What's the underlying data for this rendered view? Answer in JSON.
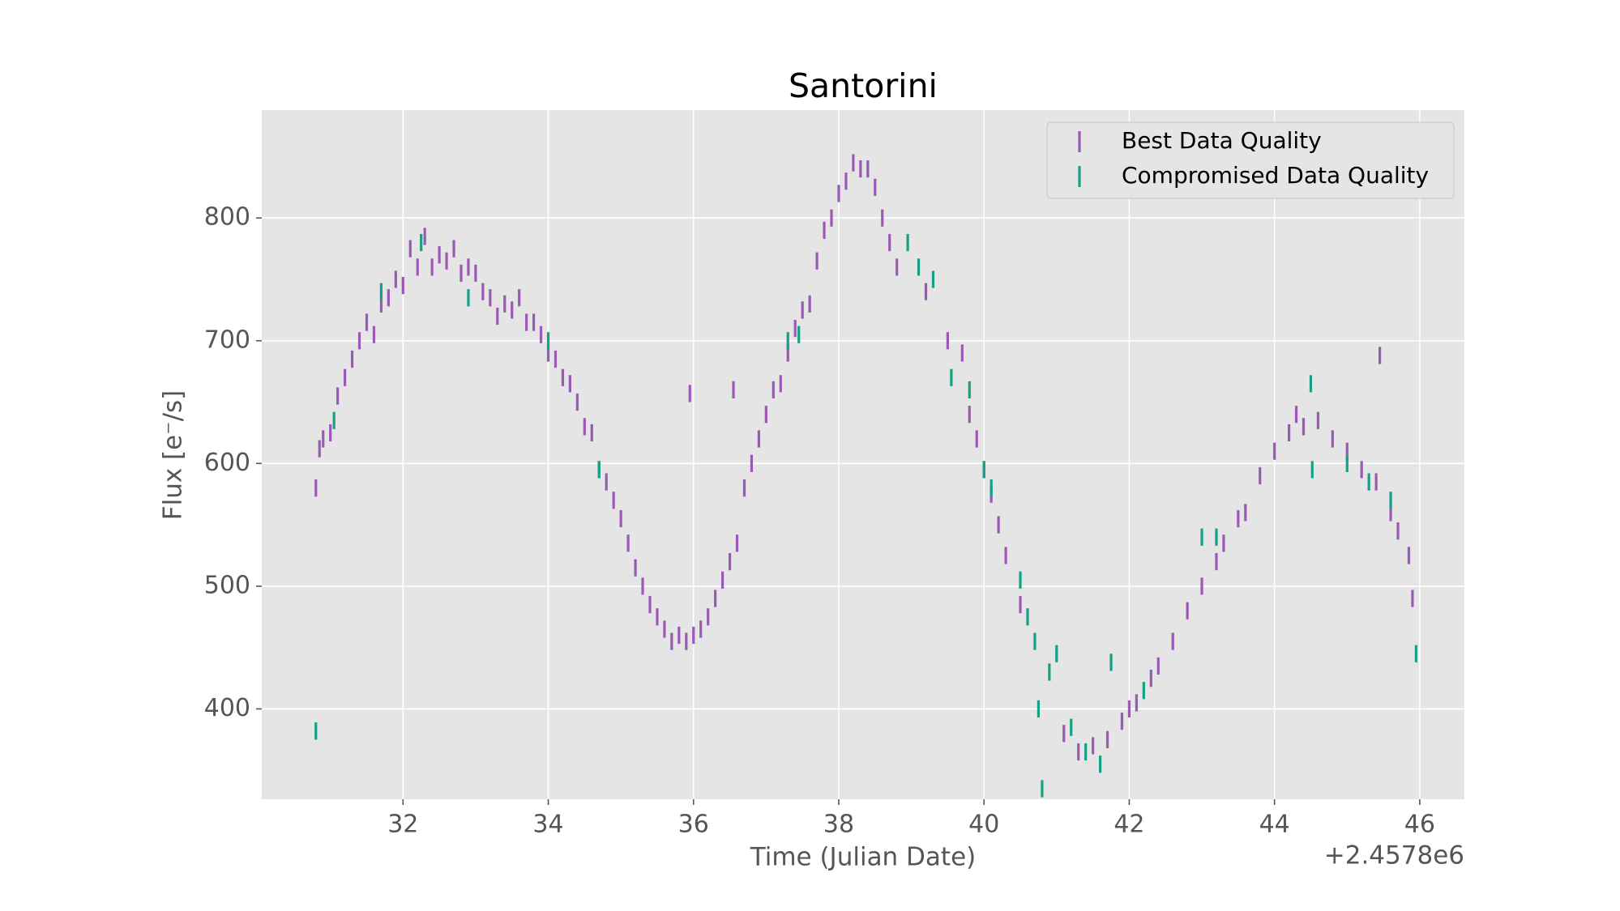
{
  "chart_data": {
    "type": "errorbar-scatter",
    "title": "Santorini",
    "x_label": "Time (Julian Date)",
    "y_label": "Flux [e⁻/s]",
    "x_offset_label": "+2.4578e6",
    "xlim": [
      30.055,
      46.615
    ],
    "ylim": [
      326.4,
      887.9
    ],
    "xticks": [
      32,
      34,
      36,
      38,
      40,
      42,
      44,
      46
    ],
    "yticks": [
      400,
      500,
      600,
      700,
      800
    ],
    "grid": true,
    "legend_position": "upper right",
    "series": [
      {
        "name": "Best Data Quality",
        "color": "#9b59b6",
        "yerr": 7,
        "x": [
          30.8,
          30.85,
          30.9,
          31.0,
          31.1,
          31.2,
          31.3,
          31.4,
          31.5,
          31.6,
          31.7,
          31.8,
          31.9,
          32.0,
          32.1,
          32.2,
          32.3,
          32.4,
          32.5,
          32.6,
          32.7,
          32.8,
          32.9,
          33.0,
          33.1,
          33.2,
          33.3,
          33.4,
          33.5,
          33.6,
          33.7,
          33.8,
          33.9,
          34.0,
          34.1,
          34.2,
          34.3,
          34.4,
          34.5,
          34.6,
          34.7,
          34.8,
          34.9,
          35.0,
          35.1,
          35.2,
          35.3,
          35.4,
          35.5,
          35.6,
          35.7,
          35.8,
          35.9,
          35.95,
          36.0,
          36.1,
          36.2,
          36.3,
          36.4,
          36.5,
          36.55,
          36.6,
          36.7,
          36.8,
          36.9,
          37.0,
          37.1,
          37.2,
          37.3,
          37.4,
          37.5,
          37.6,
          37.7,
          37.8,
          37.9,
          38.0,
          38.1,
          38.2,
          38.3,
          38.4,
          38.5,
          38.6,
          38.7,
          38.8,
          39.2,
          39.5,
          39.7,
          39.8,
          39.9,
          40.0,
          40.1,
          40.2,
          40.3,
          40.5,
          41.1,
          41.3,
          41.5,
          41.7,
          41.9,
          42.0,
          42.1,
          42.3,
          42.4,
          42.6,
          42.8,
          43.0,
          43.2,
          43.3,
          43.5,
          43.6,
          43.8,
          44.0,
          44.2,
          44.3,
          44.4,
          44.6,
          44.8,
          45.0,
          45.2,
          45.4,
          45.45,
          45.6,
          45.7,
          45.85,
          45.9
        ],
        "values": [
          580,
          612,
          620,
          625,
          655,
          670,
          685,
          700,
          715,
          705,
          730,
          735,
          750,
          745,
          775,
          760,
          785,
          760,
          770,
          765,
          775,
          755,
          760,
          755,
          740,
          735,
          720,
          730,
          725,
          735,
          715,
          715,
          705,
          690,
          685,
          670,
          665,
          650,
          630,
          625,
          595,
          585,
          570,
          555,
          535,
          515,
          500,
          485,
          475,
          465,
          455,
          460,
          455,
          657,
          460,
          465,
          475,
          490,
          505,
          520,
          660,
          535,
          580,
          600,
          620,
          640,
          660,
          665,
          690,
          710,
          725,
          730,
          765,
          790,
          800,
          820,
          830,
          845,
          840,
          840,
          825,
          800,
          780,
          760,
          740,
          700,
          690,
          640,
          620,
          595,
          575,
          550,
          525,
          485,
          380,
          365,
          370,
          375,
          390,
          400,
          405,
          425,
          435,
          455,
          480,
          500,
          520,
          535,
          555,
          560,
          590,
          610,
          625,
          640,
          630,
          635,
          620,
          610,
          595,
          585,
          688,
          560,
          545,
          525,
          490
        ]
      },
      {
        "name": "Compromised Data Quality",
        "color": "#16a085",
        "yerr": 7,
        "x": [
          30.8,
          31.05,
          31.7,
          32.25,
          32.9,
          34.0,
          34.7,
          37.3,
          37.45,
          38.95,
          39.1,
          39.3,
          39.55,
          39.8,
          40.0,
          40.1,
          40.5,
          40.6,
          40.7,
          40.75,
          40.8,
          40.9,
          41.0,
          41.2,
          41.4,
          41.6,
          41.75,
          42.2,
          43.0,
          43.2,
          44.5,
          44.52,
          45.0,
          45.3,
          45.6,
          45.95
        ],
        "values": [
          382,
          635,
          740,
          780,
          735,
          700,
          595,
          700,
          705,
          780,
          760,
          750,
          670,
          660,
          595,
          580,
          505,
          475,
          455,
          400,
          335,
          430,
          445,
          385,
          365,
          355,
          438,
          415,
          540,
          540,
          665,
          595,
          600,
          585,
          570,
          445
        ]
      }
    ]
  }
}
